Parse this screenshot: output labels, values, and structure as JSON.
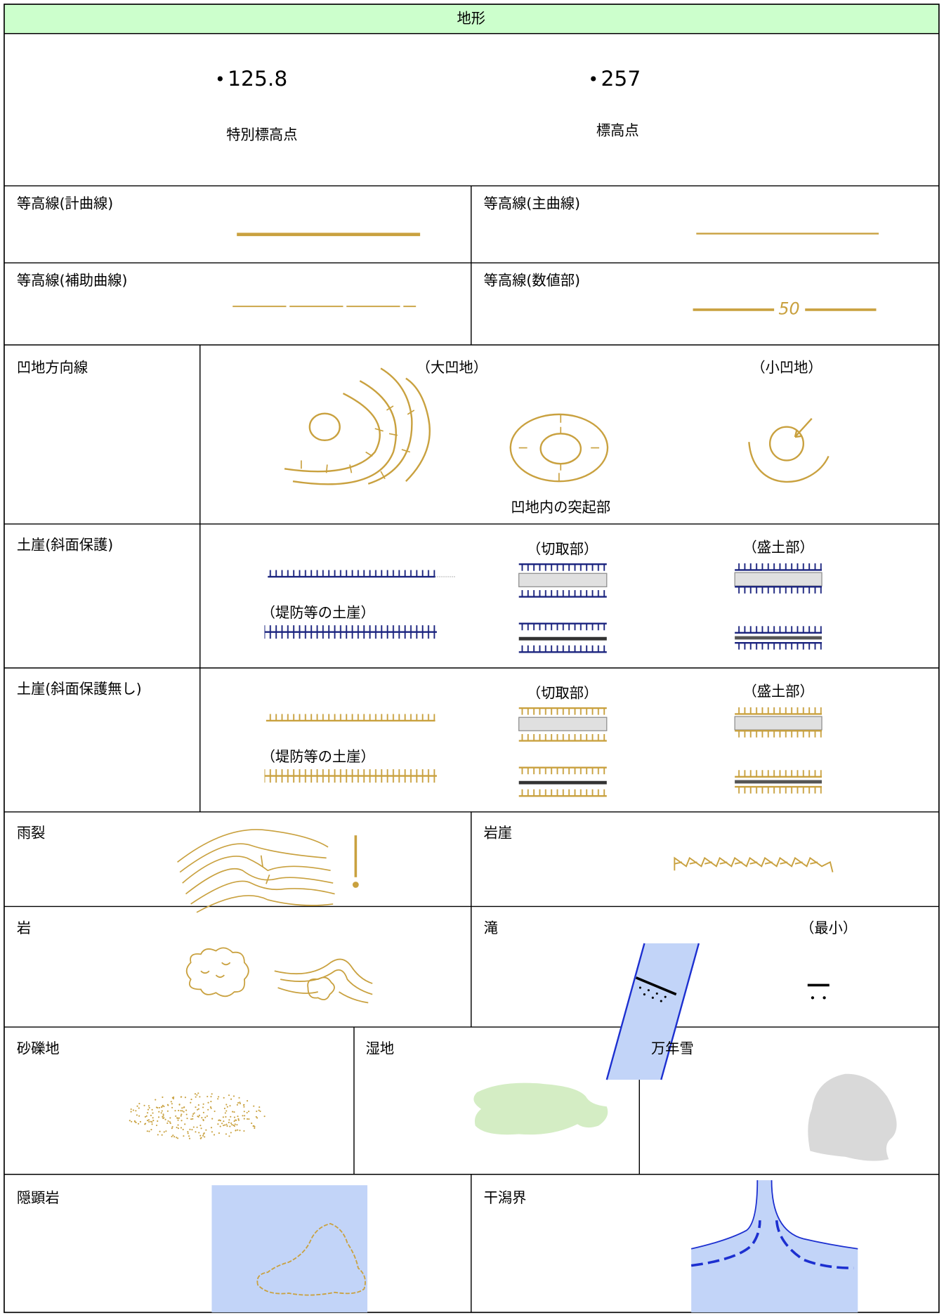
{
  "header": {
    "title": "地形"
  },
  "elevation_points": [
    {
      "value": "125.8",
      "label": "特別標高点"
    },
    {
      "value": "257",
      "label": "標高点"
    }
  ],
  "cells": [
    "等高線(計曲線)",
    "等高線(主曲線)",
    "等高線(補助曲線)",
    "等高線(数値部)",
    "凹地方向線",
    "土崖(斜面保護)",
    "土崖(斜面保護無し)",
    "雨裂",
    "岩崖",
    "岩",
    "滝",
    "砂礫地",
    "湿地",
    "万年雪",
    "隠顕岩",
    "干潟界"
  ],
  "annotations": {
    "contour_number": "50",
    "large_depression": "（大凹地）",
    "small_depression": "（小凹地）",
    "depression_rise": "凹地内の突起部",
    "cut": "（切取部）",
    "fill": "（盛土部）",
    "embankment": "（堤防等の土崖）",
    "minimum": "（最小）"
  }
}
